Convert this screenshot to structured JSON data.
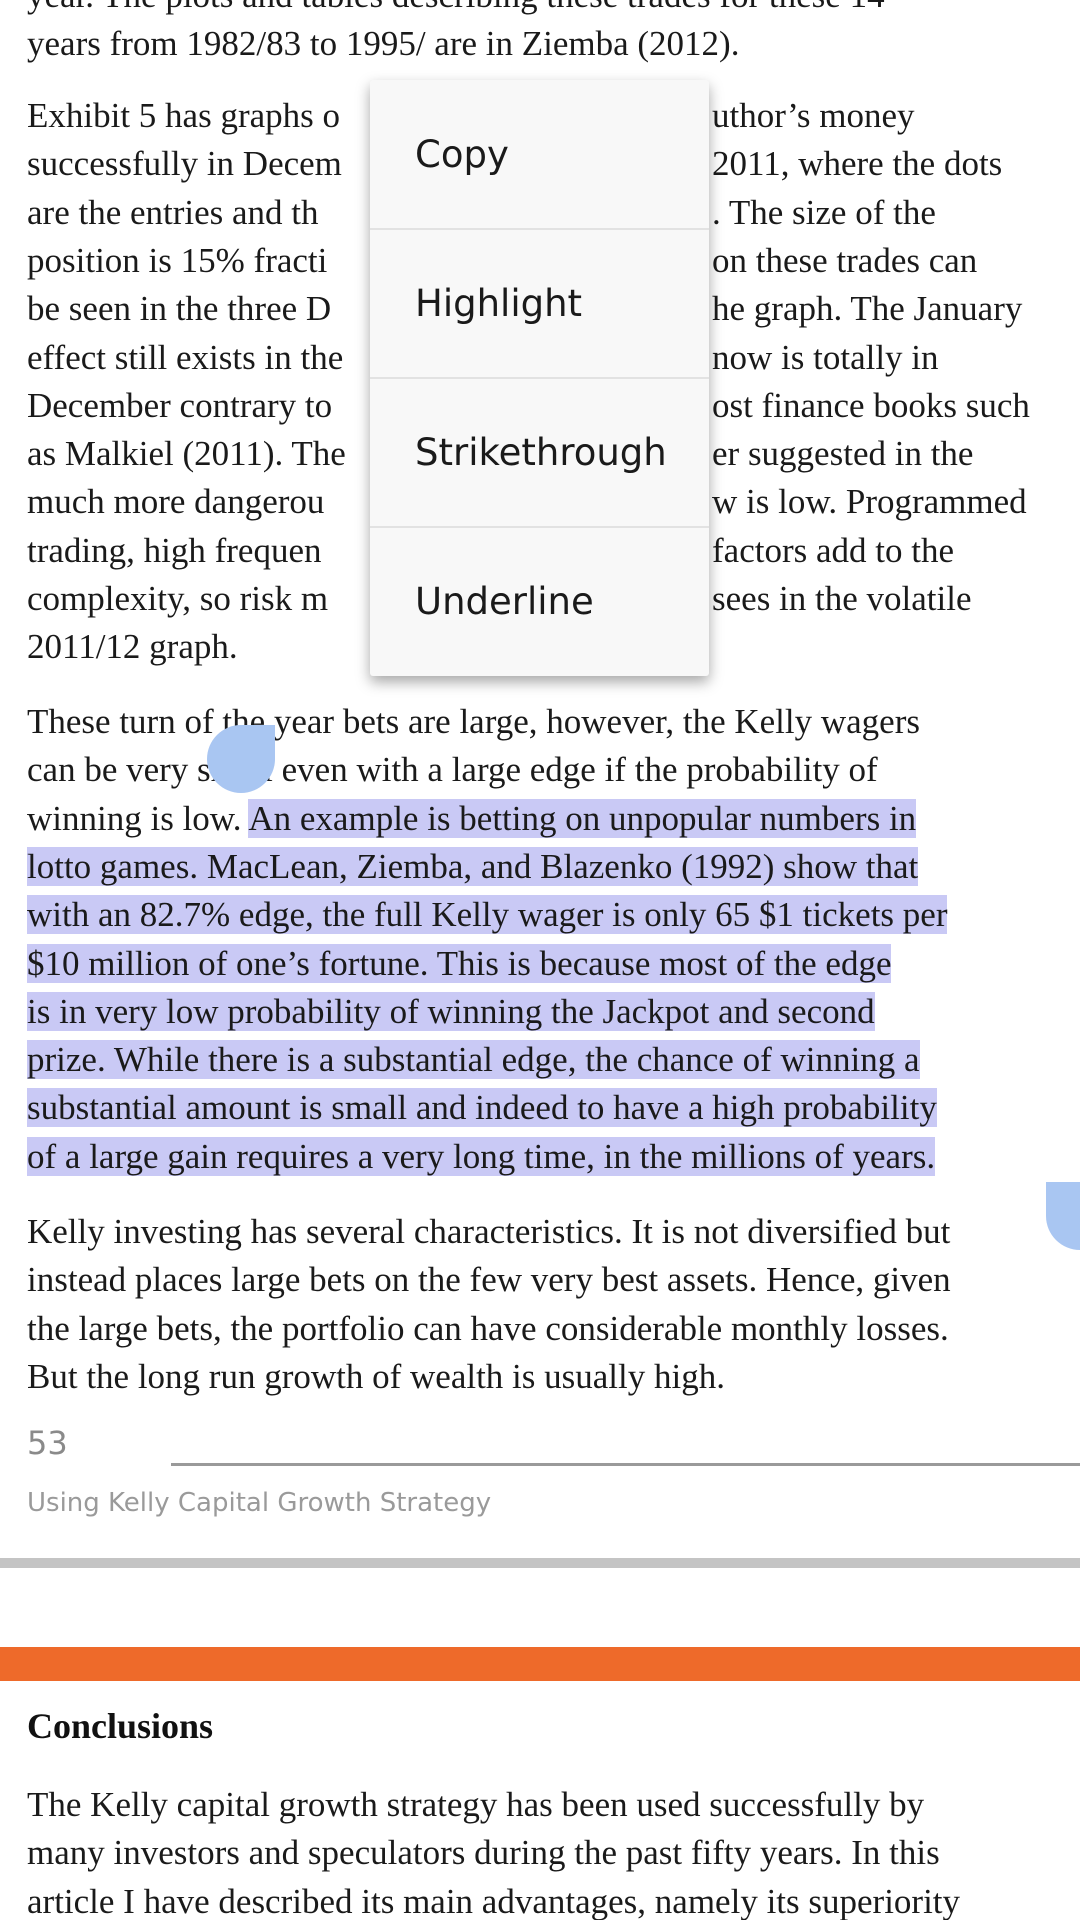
{
  "paragraphs": [
    {
      "lines": [
        "year. The plots and tables describing these trades for these 14",
        "years from 1982/83 to 1995/ are in Ziemba (2012)."
      ]
    },
    {
      "lines": [
        [
          "Exhibit 5 has graphs o",
          "uthor’s money"
        ],
        [
          "successfully in Decem",
          "2011, where the dots"
        ],
        [
          "are the entries and th",
          ". The size of the"
        ],
        [
          "position is 15% fracti",
          "on these trades can"
        ],
        [
          "be seen in the three D",
          "he graph. The January"
        ],
        [
          "effect still exists in the",
          "now is totally in"
        ],
        [
          "December contrary to",
          "ost finance books such"
        ],
        [
          "as Malkiel (2011). The",
          "er suggested in the"
        ],
        [
          "much more dangerou",
          "w is low. Programmed"
        ],
        [
          "trading, high frequen",
          "factors add to the"
        ],
        [
          "complexity, so risk m",
          "sees in the volatile"
        ],
        [
          "2011/12 graph."
        ]
      ]
    },
    {
      "lines": [
        "These turn of the year bets are large, however, the Kelly wagers",
        "can be very small even with a large edge if the probability of",
        "winning is low."
      ],
      "selected": [
        "An example is betting on unpopular numbers in",
        "lotto games. MacLean, Ziemba, and Blazenko (1992) show that",
        "with an 82.7% edge, the full Kelly wager is only 65 $1 tickets per",
        "$10 million of one’s fortune. This is because most of the edge",
        "is in very low probability of winning the Jackpot and second",
        "prize. While there is a substantial edge, the chance of winning a",
        "substantial amount is small and indeed to have a high probability",
        "of a large gain requires a very long time, in the millions of years."
      ]
    },
    {
      "lines": [
        "Kelly investing has several characteristics. It is not diversified but",
        "instead places large bets on the few very best assets. Hence, given",
        "the large bets, the portfolio can have considerable monthly losses.",
        "But the long run growth of wealth is usually high."
      ]
    }
  ],
  "footer": {
    "page_number": "53",
    "running_title": "Using Kelly Capital Growth Strategy"
  },
  "next_section": {
    "heading": "Conclusions",
    "lines": [
      "The Kelly capital growth strategy has been used successfully by",
      "many investors and speculators during the past fifty years. In this",
      "article I have described its main advantages, namely its superiority"
    ]
  },
  "menu": {
    "items": [
      "Copy",
      "Highlight",
      "Strikethrough",
      "Underline"
    ]
  }
}
